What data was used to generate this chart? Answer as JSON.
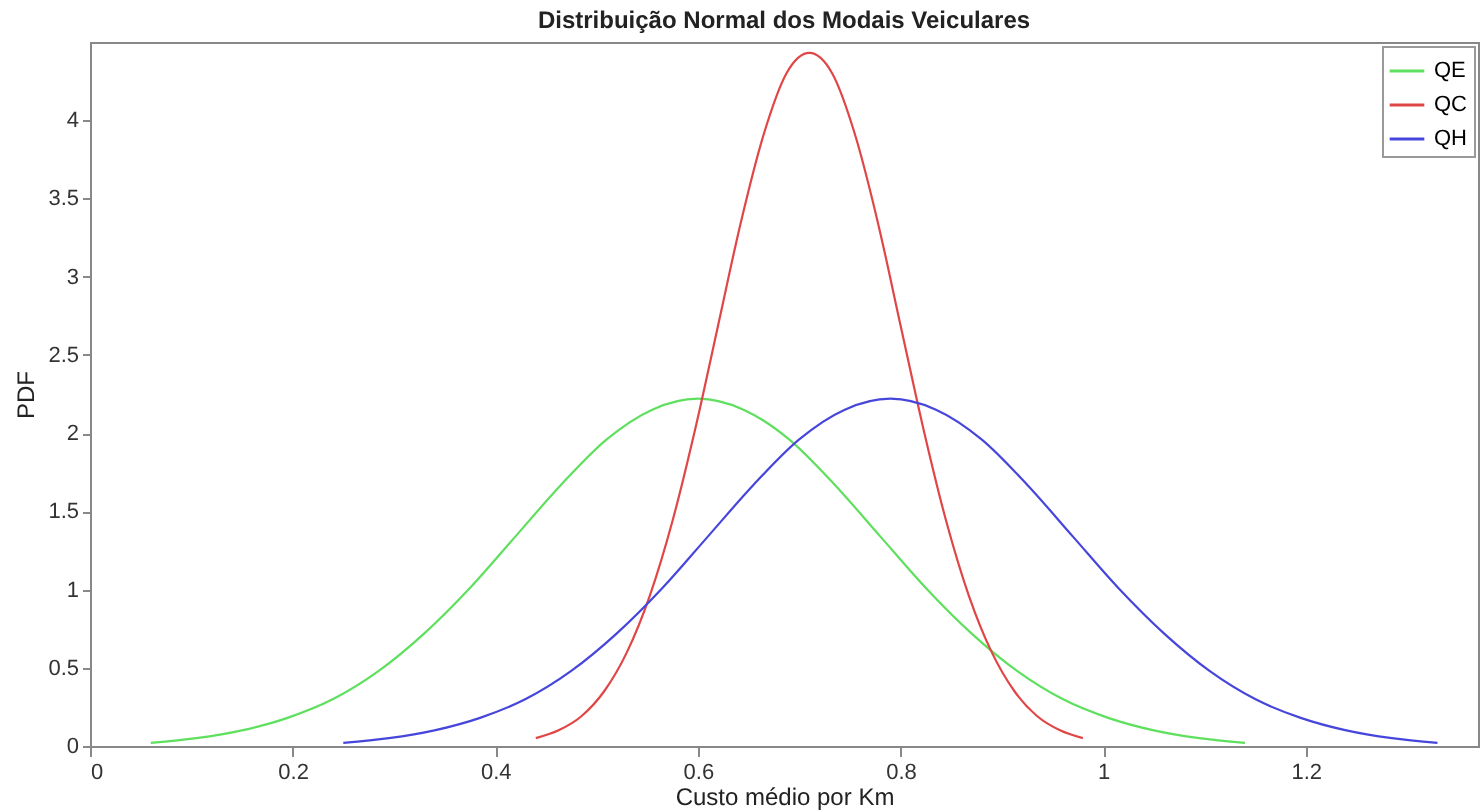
{
  "chart_data": {
    "type": "line",
    "title": "Distribuição Normal dos Modais Veiculares",
    "xlabel": "Custo médio por Km",
    "ylabel": "PDF",
    "xlim": [
      0,
      1.37
    ],
    "ylim": [
      0,
      4.5
    ],
    "xticks": [
      0,
      0.2,
      0.4,
      0.6,
      0.8,
      1,
      1.2
    ],
    "yticks": [
      0,
      0.5,
      1,
      1.5,
      2,
      2.5,
      3,
      3.5,
      4
    ],
    "grid": false,
    "legend": "top right",
    "marker": "none",
    "line_style": "solid",
    "series": [
      {
        "name": "QE",
        "color": "#5ee05e",
        "x": [
          0.06,
          0.105,
          0.15,
          0.195,
          0.24,
          0.285,
          0.33,
          0.375,
          0.42,
          0.465,
          0.51,
          0.555,
          0.6,
          0.645,
          0.69,
          0.735,
          0.78,
          0.825,
          0.87,
          0.915,
          0.96,
          1.005,
          1.05,
          1.095,
          1.14
        ],
        "values": [
          0.02,
          0.05,
          0.1,
          0.18,
          0.3,
          0.48,
          0.72,
          1.01,
          1.34,
          1.67,
          1.96,
          2.15,
          2.22,
          2.15,
          1.96,
          1.67,
          1.34,
          1.01,
          0.72,
          0.48,
          0.3,
          0.18,
          0.1,
          0.05,
          0.02
        ]
      },
      {
        "name": "QC",
        "color": "#e04646",
        "x": [
          0.44,
          0.4625,
          0.485,
          0.5075,
          0.53,
          0.5525,
          0.575,
          0.5975,
          0.62,
          0.6425,
          0.665,
          0.6875,
          0.71,
          0.7325,
          0.755,
          0.7775,
          0.8,
          0.8225,
          0.845,
          0.8675,
          0.89,
          0.9125,
          0.935,
          0.9575,
          0.98
        ],
        "values": [
          0.05,
          0.1,
          0.19,
          0.35,
          0.6,
          0.96,
          1.44,
          2.03,
          2.69,
          3.35,
          3.91,
          4.3,
          4.43,
          4.3,
          3.91,
          3.35,
          2.69,
          2.03,
          1.44,
          0.96,
          0.6,
          0.35,
          0.19,
          0.1,
          0.05
        ]
      },
      {
        "name": "QH",
        "color": "#4646dc",
        "x": [
          0.25,
          0.295,
          0.34,
          0.385,
          0.43,
          0.475,
          0.52,
          0.565,
          0.61,
          0.655,
          0.7,
          0.745,
          0.79,
          0.835,
          0.88,
          0.925,
          0.97,
          1.015,
          1.06,
          1.105,
          1.15,
          1.195,
          1.24,
          1.285,
          1.33
        ],
        "values": [
          0.02,
          0.05,
          0.1,
          0.18,
          0.3,
          0.48,
          0.72,
          1.01,
          1.34,
          1.67,
          1.96,
          2.15,
          2.22,
          2.15,
          1.96,
          1.67,
          1.34,
          1.01,
          0.72,
          0.48,
          0.3,
          0.18,
          0.1,
          0.05,
          0.02
        ]
      }
    ]
  }
}
